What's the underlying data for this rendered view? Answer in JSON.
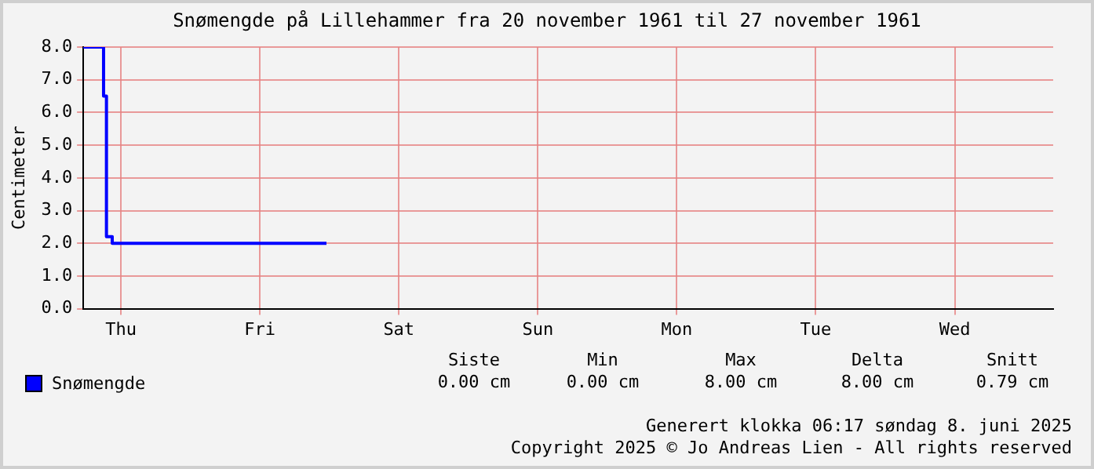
{
  "chart_data": {
    "type": "step",
    "title": "Snømengde på Lillehammer fra 20 november 1961 til 27 november 1961",
    "ylabel": "Centimeter",
    "categories": [
      null,
      null,
      null,
      null,
      null,
      null,
      null,
      null,
      null,
      null,
      null,
      null,
      null,
      "Thu",
      null,
      null,
      null,
      null,
      null,
      null,
      null,
      null,
      null,
      null,
      null,
      null,
      null,
      null,
      null,
      null,
      null,
      null,
      null,
      null,
      null,
      null,
      null,
      null,
      null,
      null,
      null,
      null,
      null,
      null,
      null,
      null,
      null,
      null,
      null,
      null,
      null,
      null,
      null,
      null,
      null,
      null,
      null,
      null,
      null,
      null,
      null,
      "Fri",
      null,
      null,
      null,
      null,
      null,
      null,
      null,
      null,
      null,
      null,
      null,
      null,
      null,
      null,
      null,
      null,
      null,
      null,
      null,
      null,
      null,
      null,
      null,
      null,
      null,
      null,
      null,
      null,
      null,
      null,
      null,
      null,
      null,
      null,
      null,
      null,
      null,
      null,
      null,
      null,
      null,
      null,
      null,
      null,
      null,
      null,
      null,
      "Sat",
      null,
      null,
      null,
      null,
      null,
      null,
      null,
      null,
      null,
      null,
      null,
      null,
      null,
      null,
      null,
      null,
      null,
      null,
      null,
      null,
      null,
      null,
      null,
      null,
      null,
      null,
      null,
      null,
      null,
      null,
      null,
      null,
      null,
      null,
      null,
      null,
      null,
      null,
      null,
      null,
      null,
      null,
      null,
      null,
      null,
      null,
      null,
      "Sun",
      null,
      null,
      null,
      null,
      null,
      null,
      null,
      null,
      null,
      null,
      null,
      null,
      null,
      null,
      null,
      null,
      null,
      null,
      null,
      null,
      null,
      null,
      null,
      null,
      null,
      null,
      null,
      null,
      null,
      null,
      null,
      null,
      null,
      null,
      null,
      null,
      null,
      null,
      null,
      null,
      null,
      null,
      null,
      null,
      null,
      null,
      null,
      "Mon",
      null,
      null,
      null,
      null,
      null,
      null,
      null,
      null,
      null,
      null,
      null,
      null,
      null,
      null,
      null,
      null,
      null,
      null,
      null,
      null,
      null,
      null,
      null,
      null,
      null,
      null,
      null,
      null,
      null,
      null,
      null,
      null,
      null,
      null,
      null,
      null,
      null,
      null,
      null,
      null,
      null,
      null,
      null,
      null,
      null,
      null,
      null,
      "Tue",
      null,
      null,
      null,
      null,
      null,
      null,
      null,
      null,
      null,
      null,
      null,
      null,
      null,
      null,
      null,
      null,
      null,
      null,
      null,
      null,
      null,
      null,
      null,
      null,
      null,
      null,
      null,
      null,
      null,
      null,
      null,
      null,
      null,
      null,
      null,
      null,
      null,
      null,
      null,
      null,
      null,
      null,
      null,
      null,
      null,
      null,
      null,
      "Wed",
      null,
      null,
      null,
      null,
      null,
      null,
      null,
      null,
      null,
      null,
      null,
      null,
      null,
      null,
      null,
      null,
      null,
      null,
      null,
      null,
      null,
      null,
      null,
      null,
      null,
      null,
      null,
      null,
      null,
      null,
      null,
      null,
      null,
      null
    ],
    "series": [
      {
        "name": "Snømengde",
        "color": "#0000ff",
        "values": [
          8.0,
          8.0,
          8.0,
          8.0,
          8.0,
          8.0,
          8.0,
          6.5,
          2.2,
          2.2,
          2.0,
          2.0,
          2.0,
          2.0,
          2.0,
          2.0,
          2.0,
          2.0,
          2.0,
          2.0,
          2.0,
          2.0,
          2.0,
          2.0,
          2.0,
          2.0,
          2.0,
          2.0,
          2.0,
          2.0,
          2.0,
          2.0,
          2.0,
          2.0,
          2.0,
          2.0,
          2.0,
          2.0,
          2.0,
          2.0,
          2.0,
          2.0,
          2.0,
          2.0,
          2.0,
          2.0,
          2.0,
          2.0,
          2.0,
          2.0,
          2.0,
          2.0,
          2.0,
          2.0,
          2.0,
          2.0,
          2.0,
          2.0,
          2.0,
          2.0,
          2.0,
          2.0,
          2.0,
          2.0,
          2.0,
          2.0,
          2.0,
          2.0,
          2.0,
          2.0,
          2.0,
          2.0,
          2.0,
          2.0,
          2.0,
          2.0,
          2.0,
          2.0,
          2.0,
          2.0,
          2.0,
          2.0,
          2.0,
          2.0,
          2.0,
          null,
          null,
          null,
          null,
          null,
          null,
          null,
          null,
          null,
          null,
          null,
          null,
          null,
          null,
          null,
          null,
          null,
          null,
          null,
          null,
          null,
          null,
          null,
          null,
          null,
          null,
          null,
          null,
          null,
          null,
          null,
          null,
          null,
          null,
          null,
          null,
          null,
          null,
          null,
          null,
          null,
          null,
          null,
          null,
          null,
          null,
          null,
          null,
          null,
          null,
          null,
          null,
          null,
          null,
          null,
          null,
          null,
          null,
          null,
          null,
          null,
          null,
          null,
          null,
          null,
          null,
          null,
          null,
          null,
          null,
          null,
          null,
          null,
          null,
          null,
          null,
          null,
          null,
          null,
          null,
          null,
          null,
          null,
          null,
          null,
          null,
          null,
          null,
          null,
          null,
          null,
          null,
          null,
          null,
          null,
          null,
          null,
          null,
          null,
          null,
          null,
          null,
          null,
          null,
          null,
          null,
          null,
          null,
          null,
          null,
          null,
          null,
          null,
          null,
          null,
          null,
          null,
          null,
          null,
          null,
          null,
          null,
          null,
          null,
          null,
          null,
          null,
          null,
          null,
          null,
          null,
          null,
          null,
          null,
          null,
          null,
          null,
          null,
          null,
          null,
          null,
          null,
          null,
          null,
          null,
          null,
          null,
          null,
          null,
          null,
          null,
          null,
          null,
          null,
          null,
          null,
          null,
          null,
          null,
          null,
          null,
          null,
          null,
          null,
          null,
          null,
          null,
          null,
          null,
          null,
          null,
          null,
          null,
          null,
          null,
          null,
          null,
          null,
          null,
          null,
          null,
          null,
          null,
          null,
          null,
          null,
          null,
          null,
          null,
          null,
          null,
          null,
          null,
          null,
          null,
          null,
          null,
          null,
          null,
          null,
          null,
          null,
          null,
          null,
          null,
          null,
          null,
          null,
          null,
          null,
          null,
          null,
          null,
          null,
          null,
          null,
          null,
          null,
          null,
          null,
          null,
          null,
          null,
          null,
          null,
          null,
          null,
          null,
          null,
          null,
          null,
          null,
          null,
          null,
          null,
          null,
          null,
          null,
          null,
          null,
          null,
          null,
          null,
          null,
          null,
          null,
          null,
          null,
          null,
          null,
          null
        ]
      }
    ],
    "ylim": [
      0,
      8
    ],
    "yticks": [
      {
        "value": 0,
        "label": "0.0"
      },
      {
        "value": 1,
        "label": "1.0"
      },
      {
        "value": 2,
        "label": "2.0"
      },
      {
        "value": 3,
        "label": "3.0"
      },
      {
        "value": 4,
        "label": "4.0"
      },
      {
        "value": 5,
        "label": "5.0"
      },
      {
        "value": 6,
        "label": "6.0"
      },
      {
        "value": 7,
        "label": "7.0"
      },
      {
        "value": 8,
        "label": "8.0"
      }
    ],
    "grid": true,
    "legend": "bottom left",
    "annotations": [
      "Siste",
      "Min",
      "Max",
      "Delta",
      "Snitt",
      "0.00 cm",
      "0.00 cm",
      "8.00 cm",
      "8.00 cm",
      "0.79 cm",
      "Generert klokka 06:17 søndag 8. juni 2025",
      "Copyright 2025 © Jo Andreas Lien - All rights reserved"
    ]
  }
}
